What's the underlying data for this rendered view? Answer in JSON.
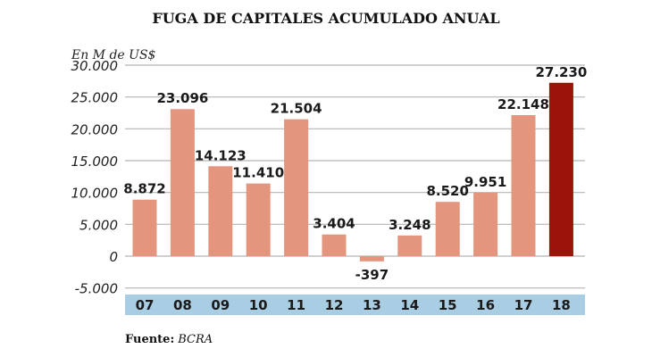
{
  "chart_data": {
    "type": "bar",
    "title": "FUGA DE CAPITALES  ACUMULADO ANUAL",
    "ylabel": "En M de US$",
    "xlabel": "",
    "ylim": [
      -5000,
      30000
    ],
    "yticks": [
      30000,
      25000,
      20000,
      15000,
      10000,
      5000,
      0,
      -5000
    ],
    "ytick_labels": [
      "30.000",
      "25.000",
      "20.000",
      "15.000",
      "10.000",
      "5.000",
      "0",
      "-5.000"
    ],
    "grid": true,
    "categories": [
      "07",
      "08",
      "09",
      "10",
      "11",
      "12",
      "13",
      "14",
      "15",
      "16",
      "17",
      "18"
    ],
    "values": [
      8872,
      23096,
      14123,
      11410,
      21504,
      3404,
      -397,
      3248,
      8520,
      9951,
      22148,
      27230
    ],
    "value_labels": [
      "8.872",
      "23.096",
      "14.123",
      "11.410",
      "21.504",
      "3.404",
      "-397",
      "3.248",
      "8.520",
      "9.951",
      "22.148",
      "27.230"
    ],
    "colors": {
      "bar": "#e3957e",
      "highlight": "#9b1309",
      "axis_band": "#a9cde3",
      "grid": "#b5b5b5"
    },
    "highlight_index": 11,
    "source_label": "Fuente:",
    "source_value": "BCRA"
  }
}
